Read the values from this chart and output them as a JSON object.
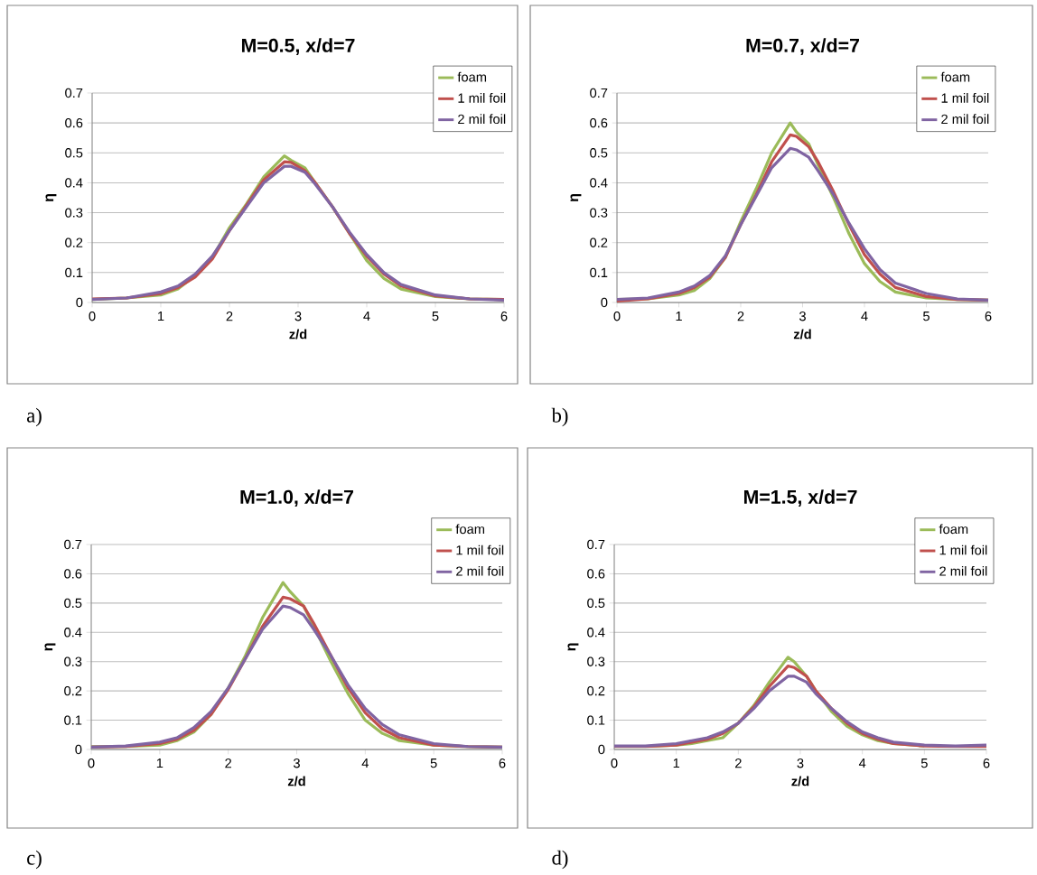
{
  "chart_data": [
    {
      "type": "line",
      "title": "M=0.5, x/d=7",
      "xlabel": "z/d",
      "ylabel": "η",
      "annotations": [
        "a)"
      ],
      "x": [
        0,
        0.5,
        1,
        1.25,
        1.5,
        1.75,
        2,
        2.25,
        2.5,
        2.8,
        2.9,
        3.1,
        3.25,
        3.5,
        3.75,
        4,
        4.25,
        4.5,
        5,
        5.5,
        6
      ],
      "series": [
        {
          "name": "foam",
          "color": "#9bbb59",
          "values": [
            0.01,
            0.015,
            0.025,
            0.045,
            0.09,
            0.15,
            0.25,
            0.33,
            0.42,
            0.49,
            0.475,
            0.45,
            0.4,
            0.32,
            0.23,
            0.14,
            0.08,
            0.045,
            0.02,
            0.012,
            0.01
          ]
        },
        {
          "name": "1 mil foil",
          "color": "#c0504d",
          "values": [
            0.012,
            0.015,
            0.03,
            0.05,
            0.085,
            0.145,
            0.24,
            0.325,
            0.41,
            0.47,
            0.468,
            0.44,
            0.4,
            0.32,
            0.23,
            0.155,
            0.095,
            0.055,
            0.022,
            0.012,
            0.01
          ]
        },
        {
          "name": "2 mil foil",
          "color": "#8064a2",
          "values": [
            0.01,
            0.015,
            0.035,
            0.055,
            0.095,
            0.155,
            0.24,
            0.32,
            0.4,
            0.455,
            0.455,
            0.435,
            0.395,
            0.32,
            0.235,
            0.16,
            0.1,
            0.06,
            0.025,
            0.012,
            0.008
          ]
        }
      ],
      "xlim": [
        0,
        6
      ],
      "ylim": [
        0,
        0.7
      ],
      "xticks": [
        0,
        1,
        2,
        3,
        4,
        5,
        6
      ],
      "yticks": [
        0,
        0.1,
        0.2,
        0.3,
        0.4,
        0.5,
        0.6,
        0.7
      ],
      "grid": "y",
      "legend": "top right"
    },
    {
      "type": "line",
      "title": "M=0.7, x/d=7",
      "xlabel": "z/d",
      "ylabel": "η",
      "annotations": [
        "b)"
      ],
      "x": [
        0,
        0.5,
        1,
        1.25,
        1.5,
        1.75,
        2,
        2.25,
        2.5,
        2.8,
        2.9,
        3.1,
        3.25,
        3.5,
        3.75,
        4,
        4.25,
        4.5,
        5,
        5.5,
        6
      ],
      "series": [
        {
          "name": "foam",
          "color": "#9bbb59",
          "values": [
            0.01,
            0.012,
            0.025,
            0.04,
            0.08,
            0.15,
            0.27,
            0.38,
            0.5,
            0.6,
            0.57,
            0.53,
            0.46,
            0.35,
            0.23,
            0.13,
            0.07,
            0.035,
            0.015,
            0.01,
            0.008
          ]
        },
        {
          "name": "1 mil foil",
          "color": "#c0504d",
          "values": [
            0.005,
            0.012,
            0.03,
            0.05,
            0.085,
            0.15,
            0.26,
            0.36,
            0.47,
            0.56,
            0.555,
            0.52,
            0.47,
            0.37,
            0.26,
            0.16,
            0.095,
            0.05,
            0.02,
            0.01,
            0.008
          ]
        },
        {
          "name": "2 mil foil",
          "color": "#8064a2",
          "values": [
            0.01,
            0.015,
            0.035,
            0.055,
            0.09,
            0.155,
            0.26,
            0.355,
            0.45,
            0.515,
            0.51,
            0.485,
            0.44,
            0.36,
            0.265,
            0.18,
            0.11,
            0.065,
            0.03,
            0.012,
            0.008
          ]
        }
      ],
      "xlim": [
        0,
        6
      ],
      "ylim": [
        0,
        0.7
      ],
      "xticks": [
        0,
        1,
        2,
        3,
        4,
        5,
        6
      ],
      "yticks": [
        0,
        0.1,
        0.2,
        0.3,
        0.4,
        0.5,
        0.6,
        0.7
      ],
      "grid": "y",
      "legend": "top right"
    },
    {
      "type": "line",
      "title": "M=1.0, x/d=7",
      "xlabel": "z/d",
      "ylabel": "η",
      "annotations": [
        "c)"
      ],
      "x": [
        0,
        0.5,
        1,
        1.25,
        1.5,
        1.75,
        2,
        2.25,
        2.5,
        2.8,
        2.9,
        3.1,
        3.25,
        3.5,
        3.75,
        4,
        4.25,
        4.5,
        5,
        5.5,
        6
      ],
      "series": [
        {
          "name": "foam",
          "color": "#9bbb59",
          "values": [
            0.01,
            0.01,
            0.015,
            0.03,
            0.06,
            0.12,
            0.21,
            0.32,
            0.45,
            0.57,
            0.54,
            0.49,
            0.42,
            0.3,
            0.19,
            0.1,
            0.055,
            0.03,
            0.015,
            0.01,
            0.008
          ]
        },
        {
          "name": "1 mil foil",
          "color": "#c0504d",
          "values": [
            0.008,
            0.01,
            0.02,
            0.035,
            0.065,
            0.12,
            0.205,
            0.31,
            0.42,
            0.52,
            0.515,
            0.49,
            0.43,
            0.32,
            0.21,
            0.125,
            0.07,
            0.04,
            0.015,
            0.01,
            0.008
          ]
        },
        {
          "name": "2 mil foil",
          "color": "#8064a2",
          "values": [
            0.008,
            0.012,
            0.025,
            0.04,
            0.075,
            0.13,
            0.21,
            0.31,
            0.41,
            0.49,
            0.485,
            0.46,
            0.41,
            0.32,
            0.22,
            0.14,
            0.085,
            0.05,
            0.02,
            0.01,
            0.008
          ]
        }
      ],
      "xlim": [
        0,
        6
      ],
      "ylim": [
        0,
        0.7
      ],
      "xticks": [
        0,
        1,
        2,
        3,
        4,
        5,
        6
      ],
      "yticks": [
        0,
        0.1,
        0.2,
        0.3,
        0.4,
        0.5,
        0.6,
        0.7
      ],
      "grid": "y",
      "legend": "top right"
    },
    {
      "type": "line",
      "title": "M=1.5, x/d=7",
      "xlabel": "z/d",
      "ylabel": "η",
      "annotations": [
        "d)"
      ],
      "x": [
        0,
        0.5,
        1,
        1.25,
        1.5,
        1.75,
        2,
        2.25,
        2.5,
        2.8,
        2.9,
        3.1,
        3.25,
        3.5,
        3.75,
        4,
        4.25,
        4.5,
        5,
        5.5,
        6
      ],
      "series": [
        {
          "name": "foam",
          "color": "#9bbb59",
          "values": [
            0.01,
            0.01,
            0.015,
            0.02,
            0.03,
            0.04,
            0.09,
            0.15,
            0.23,
            0.315,
            0.3,
            0.25,
            0.2,
            0.13,
            0.08,
            0.05,
            0.03,
            0.02,
            0.012,
            null,
            null
          ]
        },
        {
          "name": "1 mil foil",
          "color": "#c0504d",
          "values": [
            0.01,
            0.01,
            0.015,
            0.025,
            0.035,
            0.055,
            0.09,
            0.145,
            0.215,
            0.285,
            0.28,
            0.25,
            0.2,
            0.14,
            0.09,
            0.055,
            0.035,
            0.02,
            0.012,
            0.01,
            0.01
          ]
        },
        {
          "name": "2 mil foil",
          "color": "#8064a2",
          "values": [
            0.012,
            0.012,
            0.02,
            0.03,
            0.04,
            0.06,
            0.09,
            0.14,
            0.2,
            0.25,
            0.25,
            0.23,
            0.19,
            0.14,
            0.095,
            0.06,
            0.04,
            0.025,
            0.015,
            0.012,
            0.015
          ]
        }
      ],
      "xlim": [
        0,
        6
      ],
      "ylim": [
        0,
        0.7
      ],
      "xticks": [
        0,
        1,
        2,
        3,
        4,
        5,
        6
      ],
      "yticks": [
        0,
        0.1,
        0.2,
        0.3,
        0.4,
        0.5,
        0.6,
        0.7
      ],
      "grid": "y",
      "legend": "top right"
    }
  ]
}
